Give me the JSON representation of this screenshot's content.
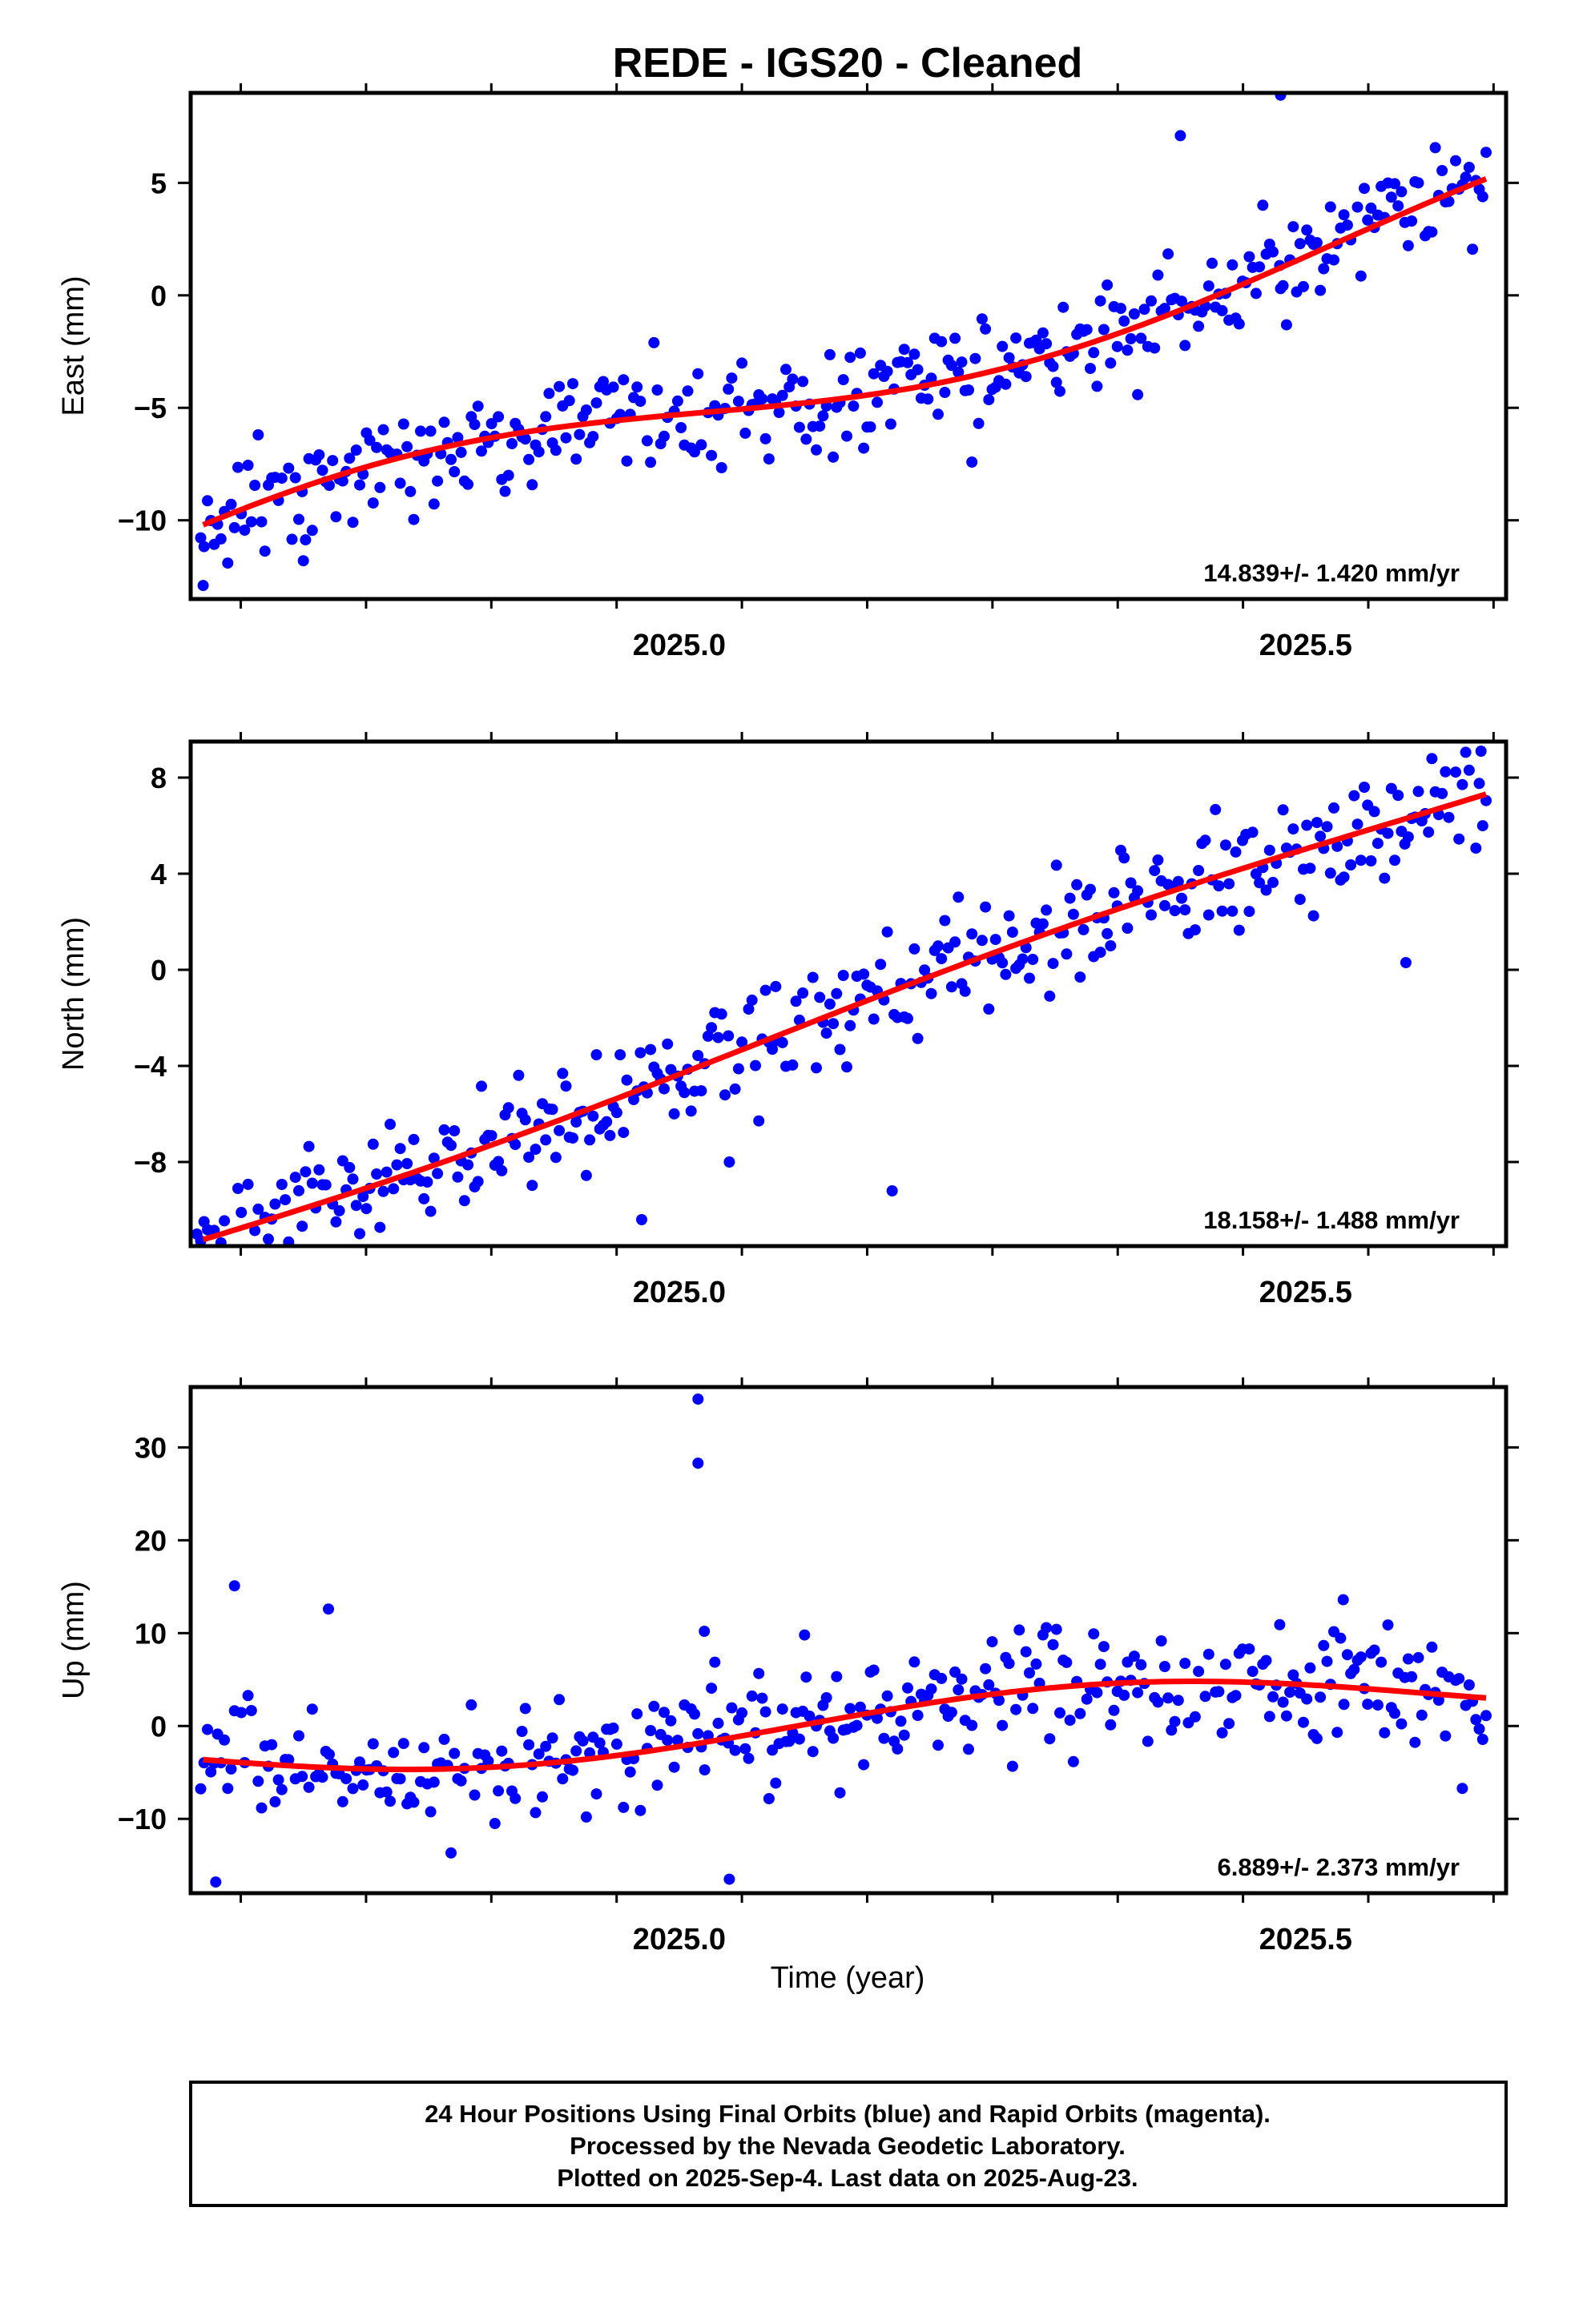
{
  "chart_data": {
    "title": "REDE  - IGS20 - Cleaned",
    "xlabel": "Time (year)",
    "x_range": [
      2024.61,
      2025.66
    ],
    "x_ticks": [
      "2025.0",
      "2025.5"
    ],
    "panels": [
      {
        "type": "scatter",
        "ylabel": "East (mm)",
        "ylim": [
          -13.5,
          9.0
        ],
        "yticks": [
          -10,
          -5,
          0,
          5
        ],
        "rate_label": "14.839+/- 1.420 mm/yr",
        "fit": {
          "intercept": -5.5,
          "rate": 14.839,
          "amp_sin": -1.58,
          "amp_cos": 0.2
        },
        "noise": 1.25,
        "outliers": [
          [
            2025.48,
            8.9
          ],
          [
            2025.48,
            0.3
          ],
          [
            2024.62,
            -12.9
          ],
          [
            2024.7,
            -11.8
          ],
          [
            2025.4,
            7.1
          ]
        ],
        "color_points": "#0000ff",
        "color_fit": "#ff0000"
      },
      {
        "type": "scatter",
        "ylabel": "North (mm)",
        "ylim": [
          -11.5,
          9.5
        ],
        "yticks": [
          -8,
          -4,
          0,
          4,
          8
        ],
        "rate_label": "18.158+/- 1.488 mm/yr",
        "fit": {
          "intercept": -4.2,
          "rate": 18.158,
          "amp_sin": 0.35,
          "amp_cos": -0.15
        },
        "noise": 1.2,
        "outliers": [
          [
            2024.615,
            -11.0
          ],
          [
            2024.97,
            -10.4
          ],
          [
            2025.17,
            -9.2
          ],
          [
            2025.04,
            -8.0
          ],
          [
            2025.58,
            0.3
          ],
          [
            2025.64,
            9.1
          ]
        ],
        "color_points": "#0000ff",
        "color_fit": "#ff0000"
      },
      {
        "type": "scatter",
        "ylabel": "Up (mm)",
        "ylim": [
          -18.0,
          36.5
        ],
        "yticks": [
          -10,
          0,
          10,
          20,
          30
        ],
        "rate_label": "6.889+/- 2.373 mm/yr",
        "fit": {
          "intercept": -0.6,
          "rate": 6.889,
          "amp_sin": 2.3,
          "amp_cos": -1.6
        },
        "noise": 3.3,
        "outliers": [
          [
            2025.015,
            35.2
          ],
          [
            2025.015,
            28.3
          ],
          [
            2025.02,
            10.2
          ],
          [
            2024.63,
            -16.8
          ],
          [
            2025.04,
            -16.5
          ],
          [
            2024.645,
            15.1
          ],
          [
            2025.53,
            13.6
          ],
          [
            2024.72,
            12.6
          ],
          [
            2025.1,
            9.8
          ]
        ],
        "color_points": "#0000ff",
        "color_fit": "#ff0000"
      }
    ]
  },
  "footer": {
    "line1": "24 Hour Positions Using Final Orbits (blue) and Rapid Orbits (magenta).",
    "line2": "Processed by the Nevada Geodetic Laboratory.",
    "line3": "Plotted on 2025-Sep-4. Last data on 2025-Aug-23."
  }
}
